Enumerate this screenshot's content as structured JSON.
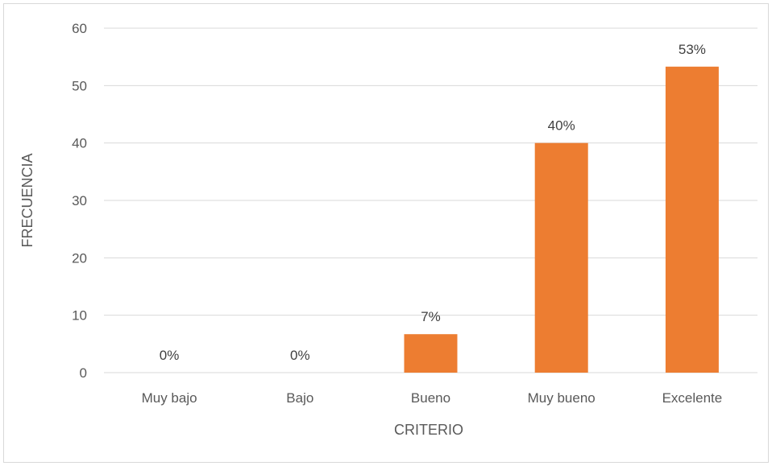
{
  "chart_data": {
    "type": "bar",
    "categories": [
      "Muy bajo",
      "Bajo",
      "Bueno",
      "Muy bueno",
      "Excelente"
    ],
    "values": [
      0,
      0,
      6.7,
      40,
      53.3
    ],
    "data_labels": [
      "0%",
      "0%",
      "7%",
      "40%",
      "53%"
    ],
    "title": "",
    "xlabel": "CRITERIO",
    "ylabel": "FRECUENCIA",
    "ylim": [
      0,
      60
    ],
    "yticks": [
      "0",
      "10",
      "20",
      "30",
      "40",
      "50",
      "60"
    ],
    "grid": true,
    "legend": "none",
    "bar_color": "#ed7d31",
    "gridline_color": "#d9d9d9",
    "text_color": "#595959"
  }
}
